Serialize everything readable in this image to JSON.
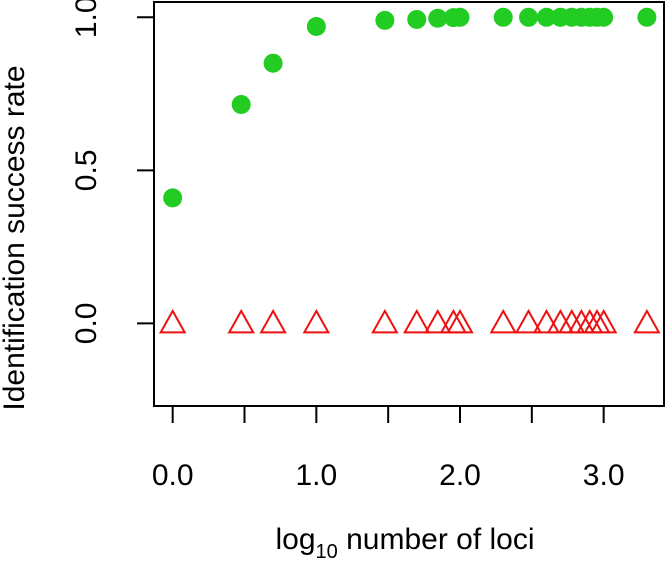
{
  "chart_data": {
    "type": "scatter",
    "xlabel": {
      "main": "log",
      "sub": "10",
      "rest": " number of loci"
    },
    "ylabel": "Identification success rate",
    "xlim": [
      -0.13,
      3.42
    ],
    "ylim": [
      -0.27,
      1.05
    ],
    "x_ticks": [
      0,
      0.5,
      1,
      1.5,
      2,
      2.5,
      3
    ],
    "x_tick_labels": [
      "0.0",
      "",
      "1.0",
      "",
      "2.0",
      "",
      "3.0"
    ],
    "y_ticks": [
      0,
      0.5,
      1
    ],
    "y_tick_labels": [
      "0.0",
      "0.5",
      "1.0"
    ],
    "grid": false,
    "series": [
      {
        "marker": "filled-circle",
        "color": "#22cc22",
        "x": [
          0,
          0.477,
          0.699,
          1.0,
          1.477,
          1.699,
          1.845,
          1.954,
          2.0,
          2.301,
          2.477,
          2.602,
          2.699,
          2.778,
          2.845,
          2.903,
          2.954,
          3.0,
          3.301
        ],
        "y": [
          0.41,
          0.715,
          0.85,
          0.97,
          0.99,
          0.993,
          0.997,
          0.999,
          1.0,
          1.0,
          1.0,
          1.0,
          1.0,
          1.0,
          1.0,
          1.0,
          1.0,
          1.0,
          1.0
        ]
      },
      {
        "marker": "open-triangle",
        "color": "#ee1111",
        "x": [
          0,
          0.477,
          0.699,
          1.0,
          1.477,
          1.699,
          1.845,
          1.954,
          2.0,
          2.301,
          2.477,
          2.602,
          2.699,
          2.778,
          2.845,
          2.903,
          2.954,
          3.0,
          3.301
        ],
        "y": [
          0,
          0,
          0,
          0,
          0,
          0,
          0,
          0,
          0,
          0,
          0,
          0,
          0,
          0,
          0,
          0,
          0,
          0,
          0
        ]
      }
    ]
  }
}
